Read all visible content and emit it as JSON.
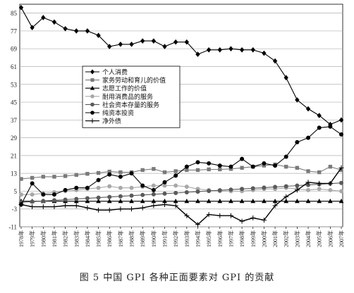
{
  "caption": "图 5  中国 GPI 各种正面要素对 GPI 的贡献",
  "chart_data": {
    "type": "line",
    "title": "",
    "xlabel": "",
    "ylabel": "",
    "ylim": [
      -11,
      89
    ],
    "yticks": [
      -11,
      -3,
      5,
      13,
      21,
      29,
      37,
      45,
      53,
      61,
      69,
      77,
      85
    ],
    "grid": "horizontal",
    "legend_position": "center-left",
    "categories": [
      "1978年",
      "1979年",
      "1980年",
      "1981年",
      "1982年",
      "1983年",
      "1984年",
      "1985年",
      "1986年",
      "1987年",
      "1988年",
      "1989年",
      "1990年",
      "1991年",
      "1992年",
      "1993年",
      "1994年",
      "1995年",
      "1996年",
      "1997年",
      "1998年",
      "1999年",
      "2000年",
      "2001年",
      "2002年",
      "2003年",
      "2004年",
      "2005年",
      "2006年",
      "2007年"
    ],
    "series": [
      {
        "name": "个人消费",
        "marker": "diamond",
        "color": "#000000",
        "values": [
          87.5,
          78.5,
          83,
          81,
          78,
          77,
          77,
          75,
          70,
          71,
          71,
          72.5,
          72.5,
          70,
          72,
          72,
          66.5,
          68.5,
          68.5,
          69,
          68.5,
          68.5,
          67,
          63.5,
          56,
          46,
          42,
          39,
          35,
          37
        ]
      },
      {
        "name": "家务劳动和育儿的价值",
        "marker": "square",
        "color": "#7a7a7a",
        "values": [
          10.5,
          11,
          11.5,
          11.5,
          11.8,
          12.3,
          12.8,
          13.2,
          13.8,
          13.5,
          13.5,
          14.5,
          15,
          13.5,
          14,
          14.5,
          14.5,
          14.8,
          14.8,
          15,
          15.5,
          16,
          16.5,
          17,
          16,
          15.5,
          14,
          13.5,
          16,
          14.5
        ]
      },
      {
        "name": "志愿工作的价值",
        "marker": "triangle",
        "color": "#000000",
        "values": [
          0.5,
          0.5,
          0.5,
          0.5,
          0.5,
          0.5,
          0.5,
          0.5,
          0.5,
          0.5,
          0.5,
          0.5,
          0.5,
          0.5,
          0.5,
          0.5,
          0.5,
          0.5,
          0.5,
          0.5,
          0.5,
          0.5,
          0.5,
          0.5,
          0.5,
          0.5,
          0.5,
          0.5,
          0.5,
          0.5
        ]
      },
      {
        "name": "耐用消费品的服务",
        "marker": "circle",
        "color": "#a8a8a8",
        "values": [
          3.5,
          3.5,
          4,
          4.5,
          5,
          5.5,
          6,
          6.5,
          7.2,
          6.5,
          6.5,
          7,
          7.5,
          7.5,
          7.5,
          7,
          6,
          5.5,
          5,
          5,
          5,
          5.5,
          6,
          6,
          6.5,
          6,
          5.5,
          6,
          5.5,
          5
        ]
      },
      {
        "name": "社会资本存量的服务",
        "marker": "circle",
        "color": "#5a5a5a",
        "values": [
          0,
          0.3,
          0.6,
          0.9,
          1.2,
          1.5,
          1.8,
          2.1,
          2.4,
          2.7,
          3,
          3.3,
          3.6,
          3.9,
          4.2,
          4.5,
          4.8,
          5.1,
          5.4,
          5.7,
          6,
          6.3,
          6.6,
          6.9,
          7.2,
          7.5,
          7.8,
          8.1,
          8.4,
          8.7
        ]
      },
      {
        "name": "纯资本投资",
        "marker": "circle",
        "color": "#000000",
        "values": [
          -1,
          8.5,
          3.5,
          3.5,
          5.5,
          6.5,
          6.5,
          10,
          12.5,
          11.5,
          13,
          7.5,
          5.5,
          9,
          12,
          16,
          18,
          17.5,
          16.5,
          16,
          19.5,
          16,
          17.5,
          16.5,
          20.5,
          27,
          29,
          33.5,
          34,
          30.5
        ]
      },
      {
        "name": "净外债",
        "marker": "cross",
        "color": "#000000",
        "values": [
          -1,
          -2,
          -2,
          -2,
          -1.5,
          -1.5,
          -2.5,
          -3.5,
          -3.5,
          -3,
          -3,
          -2.5,
          -1.5,
          -1,
          -1.5,
          -6,
          -10,
          -5.5,
          -6,
          -6,
          -8.5,
          -7,
          -8,
          -1.5,
          2.5,
          5.5,
          9,
          8.5,
          8.5,
          15.5
        ]
      }
    ]
  }
}
